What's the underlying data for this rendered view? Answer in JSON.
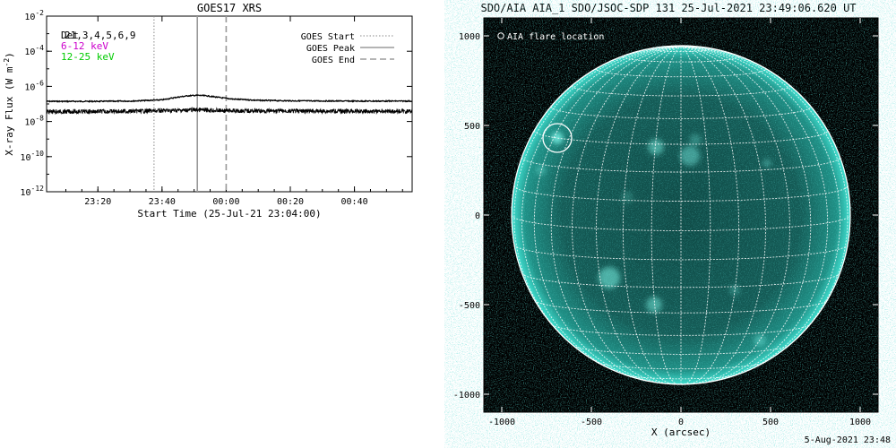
{
  "left_chart_title": "GOES17 XRS",
  "right_chart_title": "SDO/AIA AIA_1 SDO/JSOC-SDP 131 25-Jul-2021 23:49:06.620 UT",
  "footer": "5-Aug-2021 23:48",
  "colors": {
    "channel_6_12": "#cc00cc",
    "channel_12_25": "#00cc00",
    "sun_disk": "#26c6b8",
    "background": "#ffffff"
  },
  "chart_data": [
    {
      "type": "line",
      "title": "GOES17 XRS",
      "xlabel": "Start Time (25-Jul-21 23:04:00)",
      "ylabel": "X-ray Flux (W m",
      "ylabel_sup": "-2",
      "ylabel_close": ")",
      "log_y": true,
      "xlim_minutes_after_2300": [
        4,
        118
      ],
      "x_ticks": [
        {
          "label": "23:20",
          "minutes": 20
        },
        {
          "label": "23:40",
          "minutes": 40
        },
        {
          "label": "00:00",
          "minutes": 60
        },
        {
          "label": "00:20",
          "minutes": 80
        },
        {
          "label": "00:40",
          "minutes": 100
        }
      ],
      "y_ticks": [
        {
          "base": "10",
          "exp": "-2",
          "value": 0.01
        },
        {
          "base": "10",
          "exp": "-4",
          "value": 0.0001
        },
        {
          "base": "10",
          "exp": "-6",
          "value": 1e-06
        },
        {
          "base": "10",
          "exp": "-8",
          "value": 1e-08
        },
        {
          "base": "10",
          "exp": "-10",
          "value": 1e-10
        },
        {
          "base": "10",
          "exp": "-12",
          "value": 1e-12
        }
      ],
      "ylim": [
        1e-12,
        0.01
      ],
      "top_left_text": {
        "detector": "Det",
        "detector_list": "21,3,4,5,6,9",
        "channel_6_12": "6-12 keV",
        "channel_12_25": "12-25 keV"
      },
      "legend": {
        "placement": "top-right",
        "entries": [
          {
            "label": "GOES Start",
            "style": "dotted"
          },
          {
            "label": "GOES Peak",
            "style": "solid"
          },
          {
            "label": "GOES End",
            "style": "dashed"
          }
        ]
      },
      "events_minutes_after_2300": {
        "start": 37.5,
        "peak": 51,
        "end": 60
      },
      "series": [
        {
          "name": "long",
          "x": [
            4,
            20,
            30,
            40,
            44,
            48,
            51,
            54,
            58,
            62,
            70,
            80,
            100,
            118
          ],
          "y": [
            1.4e-07,
            1.4e-07,
            1.45e-07,
            1.7e-07,
            2.3e-07,
            2.9e-07,
            3.1e-07,
            2.9e-07,
            2.3e-07,
            1.9e-07,
            1.6e-07,
            1.5e-07,
            1.45e-07,
            1.45e-07
          ]
        },
        {
          "name": "short",
          "x": [
            4,
            30,
            45,
            51,
            60,
            80,
            118
          ],
          "y": [
            3.6e-08,
            3.8e-08,
            4.3e-08,
            4.6e-08,
            4.1e-08,
            3.9e-08,
            3.8e-08
          ]
        }
      ]
    },
    {
      "type": "scatter",
      "title": "SDO/AIA AIA_1 SDO/JSOC-SDP 131 25-Jul-2021 23:49:06.620 UT",
      "xlabel": "X (arcsec)",
      "ylabel": "",
      "xlim": [
        -1100,
        1100
      ],
      "ylim": [
        -1100,
        1100
      ],
      "x_ticks": [
        -1000,
        -500,
        0,
        500,
        1000
      ],
      "y_ticks": [
        -1000,
        -500,
        0,
        500,
        1000
      ],
      "solar_radius_arcsec": 945,
      "grid": "heliographic 10-degree",
      "legend": {
        "placement": "top-left",
        "entries": [
          {
            "label": "AIA flare location",
            "symbol": "open circle"
          }
        ]
      },
      "flare_location": {
        "x": -690,
        "y": 430,
        "radius": 80
      }
    }
  ]
}
